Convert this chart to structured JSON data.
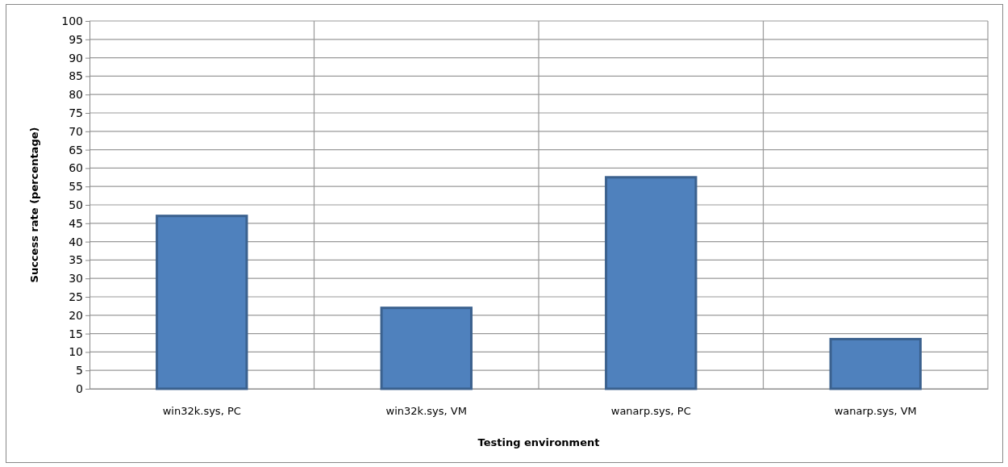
{
  "chart_data": {
    "type": "bar",
    "xlabel": "Testing environment",
    "ylabel": "Success rate (percentage)",
    "categories": [
      "win32k.sys, PC",
      "win32k.sys, VM",
      "wanarp.sys, PC",
      "wanarp.sys, VM"
    ],
    "values": [
      47,
      22,
      57.5,
      13.5
    ],
    "color": "#4f81bd",
    "ylim": [
      0,
      100
    ],
    "yticks": [
      0,
      5,
      10,
      15,
      20,
      25,
      30,
      35,
      40,
      45,
      50,
      55,
      60,
      65,
      70,
      75,
      80,
      85,
      90,
      95,
      100
    ],
    "grid": true
  }
}
